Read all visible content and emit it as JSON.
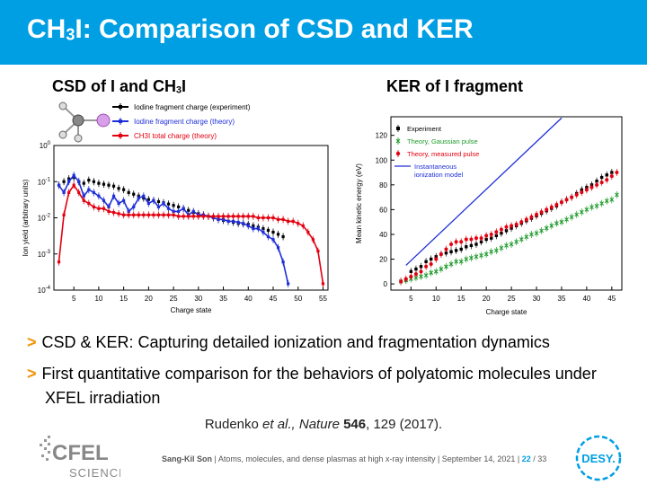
{
  "slide": {
    "title_prefix": "CH",
    "title_sub": "3",
    "title_suffix": "I: Comparison of CSD and KER",
    "accent": "#009fe3",
    "bullet_color": "#f39200"
  },
  "left_panel": {
    "title_prefix": "CSD of I and CH",
    "title_sub": "3",
    "title_suffix": "I"
  },
  "right_panel": {
    "title": "KER of I fragment"
  },
  "bullets": [
    {
      "marker": ">",
      "text": "CSD & KER: Capturing detailed ionization and fragmentation dynamics"
    },
    {
      "marker": ">",
      "text": "First quantitative comparison for the behaviors of polyatomic molecules under XFEL irradiation"
    }
  ],
  "citation": {
    "authors": "Rudenko ",
    "etal": "et al., Nature ",
    "volume": "546",
    "pages": ", 129 (2017)."
  },
  "footer": {
    "author": "Sang-Kil Son",
    "text": " | Atoms, molecules, and dense plasmas at high x-ray intensity | September 14, 2021 | ",
    "page": "22",
    "total": " / 33"
  },
  "logos": {
    "cfel_line1": "CFEL",
    "cfel_line2": "SCIENCE",
    "desy": "DESY."
  },
  "chart_data": [
    {
      "type": "line",
      "xlabel": "Charge state",
      "ylabel": "Ion yield (arbitrary units)",
      "yscale": "log",
      "xlim": [
        1,
        56
      ],
      "ylim": [
        0.0001,
        1
      ],
      "xticks": [
        5,
        10,
        15,
        20,
        25,
        30,
        35,
        40,
        45,
        50,
        55
      ],
      "yticks": [
        {
          "value": 0.0001,
          "label": "10",
          "exp": "-4"
        },
        {
          "value": 0.001,
          "label": "10",
          "exp": "-3"
        },
        {
          "value": 0.01,
          "label": "10",
          "exp": "-2"
        },
        {
          "value": 0.1,
          "label": "10",
          "exp": "-1"
        },
        {
          "value": 1,
          "label": "10",
          "exp": "0"
        }
      ],
      "legend_position": "top",
      "series": [
        {
          "name": "Iodine fragment charge (experiment)",
          "color": "#000000",
          "x": [
            2,
            3,
            4,
            5,
            6,
            7,
            8,
            9,
            10,
            11,
            12,
            13,
            14,
            15,
            16,
            17,
            18,
            19,
            20,
            21,
            22,
            23,
            24,
            25,
            26,
            27,
            28,
            29,
            30,
            31,
            32,
            33,
            34,
            35,
            36,
            37,
            38,
            39,
            40,
            41,
            42,
            43,
            44,
            45,
            46,
            47
          ],
          "y": [
            0.08,
            0.1,
            0.12,
            0.13,
            0.1,
            0.09,
            0.11,
            0.1,
            0.09,
            0.085,
            0.08,
            0.075,
            0.065,
            0.06,
            0.05,
            0.045,
            0.04,
            0.035,
            0.032,
            0.03,
            0.028,
            0.026,
            0.024,
            0.022,
            0.02,
            0.018,
            0.016,
            0.014,
            0.013,
            0.012,
            0.011,
            0.01,
            0.009,
            0.0085,
            0.008,
            0.0075,
            0.007,
            0.0068,
            0.0066,
            0.006,
            0.0055,
            0.005,
            0.0045,
            0.004,
            0.0035,
            0.003
          ]
        },
        {
          "name": "Iodine fragment charge (theory)",
          "color": "#1f2fd8",
          "x": [
            2,
            3,
            4,
            5,
            6,
            7,
            8,
            9,
            10,
            11,
            12,
            13,
            14,
            15,
            16,
            17,
            18,
            19,
            20,
            21,
            22,
            23,
            24,
            25,
            26,
            27,
            28,
            29,
            30,
            31,
            32,
            33,
            34,
            35,
            36,
            37,
            38,
            39,
            40,
            41,
            42,
            43,
            44,
            45,
            46,
            47,
            48
          ],
          "y": [
            0.08,
            0.05,
            0.1,
            0.15,
            0.1,
            0.04,
            0.06,
            0.05,
            0.04,
            0.03,
            0.02,
            0.04,
            0.025,
            0.03,
            0.015,
            0.02,
            0.035,
            0.04,
            0.025,
            0.03,
            0.02,
            0.025,
            0.018,
            0.015,
            0.015,
            0.018,
            0.012,
            0.015,
            0.012,
            0.012,
            0.011,
            0.01,
            0.009,
            0.009,
            0.008,
            0.008,
            0.0075,
            0.007,
            0.006,
            0.005,
            0.005,
            0.004,
            0.003,
            0.0025,
            0.0015,
            0.0006,
            0.00015
          ]
        },
        {
          "name": "CH3I total charge (theory)",
          "color": "#e3000f",
          "x": [
            2,
            3,
            4,
            5,
            6,
            7,
            8,
            9,
            10,
            11,
            12,
            13,
            14,
            15,
            16,
            17,
            18,
            19,
            20,
            21,
            22,
            23,
            24,
            25,
            26,
            27,
            28,
            29,
            30,
            31,
            32,
            33,
            34,
            35,
            36,
            37,
            38,
            39,
            40,
            41,
            42,
            43,
            44,
            45,
            46,
            47,
            48,
            49,
            50,
            51,
            52,
            53,
            54,
            55
          ],
          "y": [
            0.0006,
            0.012,
            0.05,
            0.08,
            0.05,
            0.03,
            0.025,
            0.02,
            0.018,
            0.018,
            0.015,
            0.014,
            0.013,
            0.012,
            0.012,
            0.012,
            0.012,
            0.012,
            0.012,
            0.012,
            0.012,
            0.012,
            0.012,
            0.012,
            0.011,
            0.011,
            0.011,
            0.011,
            0.011,
            0.011,
            0.011,
            0.011,
            0.011,
            0.011,
            0.011,
            0.011,
            0.011,
            0.011,
            0.011,
            0.011,
            0.01,
            0.01,
            0.01,
            0.01,
            0.009,
            0.009,
            0.008,
            0.008,
            0.007,
            0.006,
            0.004,
            0.0025,
            0.0012,
            0.00015
          ]
        }
      ]
    },
    {
      "type": "scatter",
      "xlabel": "Charge state",
      "ylabel": "Mean kinetic energy (eV)",
      "xlim": [
        1,
        47
      ],
      "ylim": [
        -5,
        135
      ],
      "xticks": [
        5,
        10,
        15,
        20,
        25,
        30,
        35,
        40,
        45
      ],
      "yticks": [
        0,
        20,
        40,
        60,
        80,
        100,
        120
      ],
      "legend_position": "top-left",
      "series": [
        {
          "name": "Experiment",
          "color": "#000000",
          "marker": "square",
          "x": [
            3,
            4,
            5,
            6,
            7,
            8,
            9,
            10,
            11,
            12,
            13,
            14,
            15,
            16,
            17,
            18,
            19,
            20,
            21,
            22,
            23,
            24,
            25,
            26,
            27,
            28,
            29,
            30,
            31,
            32,
            33,
            34,
            35,
            36,
            37,
            38,
            39,
            40,
            41,
            42,
            43,
            44,
            45
          ],
          "y": [
            2,
            3,
            10,
            12,
            14,
            18,
            20,
            22,
            24,
            25,
            26,
            27,
            28,
            30,
            31,
            32,
            34,
            36,
            37,
            39,
            41,
            43,
            45,
            47,
            49,
            51,
            53,
            55,
            57,
            59,
            61,
            63,
            66,
            68,
            70,
            73,
            76,
            78,
            80,
            83,
            86,
            88,
            90
          ]
        },
        {
          "name": "Theory, Gaussian pulse",
          "color": "#1e9b2a",
          "marker": "x",
          "x": [
            3,
            4,
            5,
            6,
            7,
            8,
            9,
            10,
            11,
            12,
            13,
            14,
            15,
            16,
            17,
            18,
            19,
            20,
            21,
            22,
            23,
            24,
            25,
            26,
            27,
            28,
            29,
            30,
            31,
            32,
            33,
            34,
            35,
            36,
            37,
            38,
            39,
            40,
            41,
            42,
            43,
            44,
            45,
            46
          ],
          "y": [
            2,
            3,
            4,
            5,
            6,
            7,
            9,
            10,
            12,
            14,
            16,
            18,
            18,
            20,
            21,
            22,
            23,
            24,
            26,
            27,
            29,
            31,
            32,
            34,
            36,
            38,
            40,
            41,
            43,
            45,
            47,
            49,
            50,
            52,
            54,
            56,
            58,
            60,
            62,
            63,
            65,
            67,
            68,
            72
          ]
        },
        {
          "name": "Theory, measured pulse",
          "color": "#e3000f",
          "marker": "circle",
          "x": [
            3,
            4,
            5,
            6,
            7,
            8,
            9,
            10,
            11,
            12,
            13,
            14,
            15,
            16,
            17,
            18,
            19,
            20,
            21,
            22,
            23,
            24,
            25,
            26,
            27,
            28,
            29,
            30,
            31,
            32,
            33,
            34,
            35,
            36,
            37,
            38,
            39,
            40,
            41,
            42,
            43,
            44,
            45,
            46
          ],
          "y": [
            2,
            4,
            6,
            8,
            10,
            14,
            16,
            20,
            24,
            28,
            32,
            34,
            34,
            36,
            36,
            37,
            37,
            39,
            40,
            42,
            44,
            46,
            47,
            48,
            50,
            52,
            54,
            56,
            58,
            60,
            62,
            64,
            66,
            68,
            70,
            72,
            74,
            76,
            78,
            80,
            82,
            84,
            87,
            90
          ]
        },
        {
          "name": "Instantaneous ionization model",
          "color": "#1f2fd8",
          "marker": "line",
          "x": [
            4,
            35
          ],
          "y": [
            15,
            134
          ]
        }
      ]
    }
  ]
}
